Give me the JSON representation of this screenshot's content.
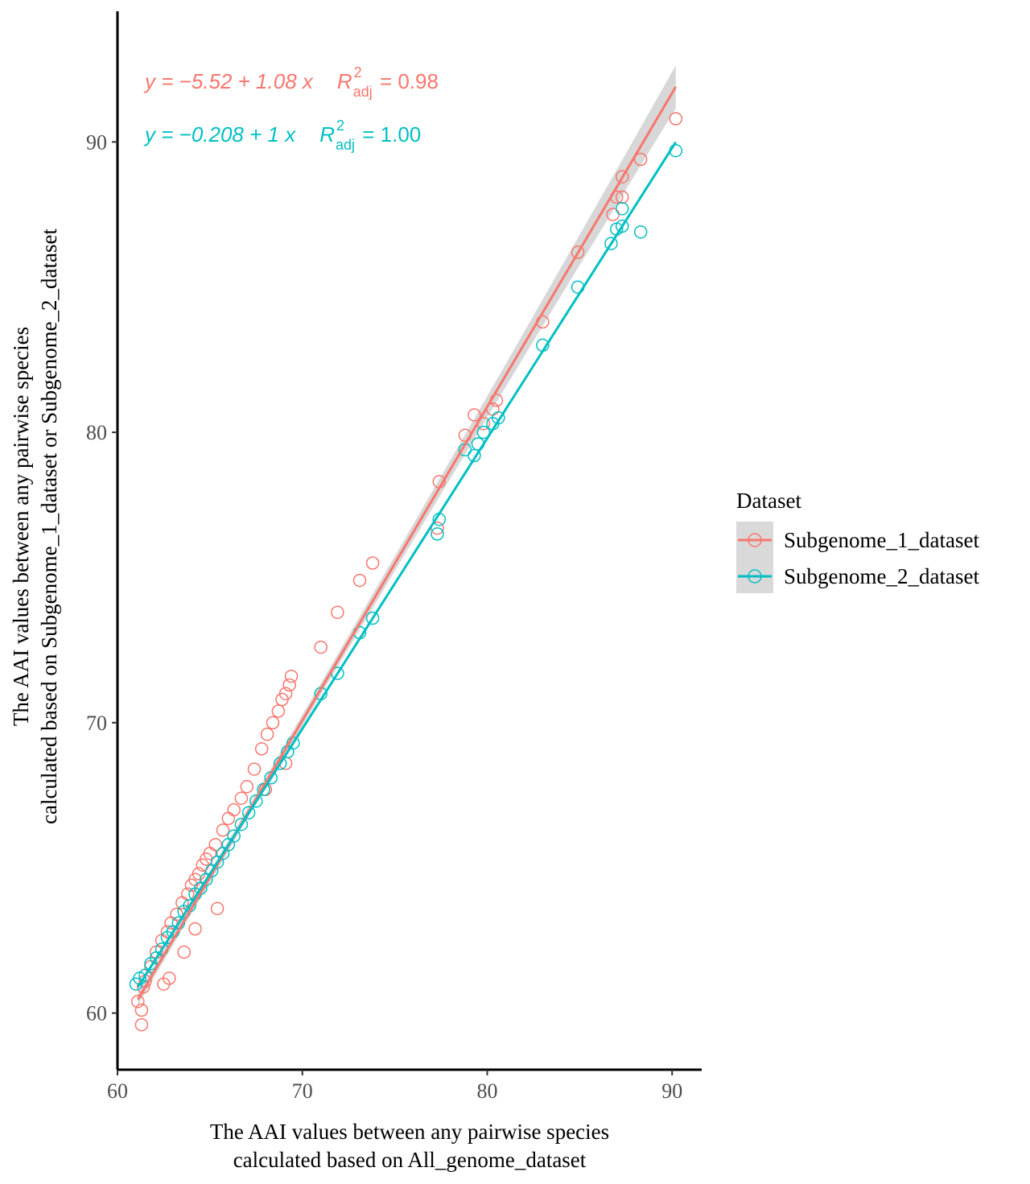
{
  "chart_data": {
    "type": "scatter",
    "title": "",
    "xlabel_lines": [
      "The AAI values between any pairwise species",
      "calculated based on All_genome_dataset"
    ],
    "ylabel_lines": [
      "The AAI values between any pairwise species",
      "calculated based on Subgenome_1_dataset or Subgenome_2_dataset"
    ],
    "xlim": [
      60,
      91.6
    ],
    "ylim": [
      58.05,
      94.5
    ],
    "x_ticks": [
      60,
      70,
      80,
      90
    ],
    "y_ticks": [
      60,
      70,
      80,
      90
    ],
    "x_tick_labels": [
      "60",
      "70",
      "80",
      "90"
    ],
    "y_tick_labels": [
      "60",
      "70",
      "80",
      "90"
    ],
    "grid": false,
    "legend": {
      "title": "Dataset",
      "position": "right"
    },
    "series": [
      {
        "name": "Subgenome_1_dataset",
        "color": "#F8766D",
        "equation": {
          "prefix": "y = −5.52 + 1.08 x",
          "r_symbol": "R",
          "r_sup": "2",
          "r_sub": "adj",
          "r_value": " = 0.98"
        },
        "fit": {
          "intercept": -5.52,
          "slope": 1.08,
          "x_range": [
            61.1,
            90.2
          ]
        },
        "x": [
          61.1,
          61.4,
          61.5,
          61.8,
          62.1,
          62.4,
          62.7,
          62.9,
          63.2,
          63.5,
          63.8,
          64.0,
          64.2,
          64.4,
          64.6,
          64.8,
          65.0,
          65.3,
          65.7,
          66.0,
          66.3,
          66.7,
          67.0,
          67.4,
          67.8,
          68.1,
          68.4,
          68.7,
          68.9,
          69.1,
          69.3,
          69.4,
          71.0,
          71.9,
          73.1,
          73.8,
          77.3,
          77.4,
          78.8,
          79.3,
          79.8,
          80.3,
          80.5,
          83.0,
          84.9,
          86.8,
          87.0,
          87.3,
          87.3,
          88.3,
          90.2,
          61.3,
          62.5,
          63.6,
          64.2,
          65.4,
          61.3,
          62.8,
          68.0,
          69.1
        ],
        "y": [
          60.4,
          60.9,
          61.1,
          61.6,
          62.1,
          62.5,
          62.8,
          63.1,
          63.4,
          63.8,
          64.1,
          64.4,
          64.6,
          64.8,
          65.1,
          65.3,
          65.5,
          65.8,
          66.3,
          66.7,
          67.0,
          67.4,
          67.8,
          68.4,
          69.1,
          69.6,
          70.0,
          70.4,
          70.8,
          71.0,
          71.3,
          71.6,
          72.6,
          73.8,
          74.9,
          75.5,
          76.7,
          78.3,
          79.9,
          80.6,
          80.3,
          80.8,
          81.1,
          83.8,
          86.2,
          87.5,
          88.1,
          88.1,
          88.8,
          89.4,
          90.8,
          59.6,
          61.0,
          62.1,
          62.9,
          63.6,
          60.1,
          61.2,
          67.7,
          68.6
        ]
      },
      {
        "name": "Subgenome_2_dataset",
        "color": "#00BFC4",
        "equation": {
          "prefix": "y = −0.208 + 1 x",
          "r_symbol": "R",
          "r_sup": "2",
          "r_sub": "adj",
          "r_value": " = 1.00"
        },
        "fit": {
          "intercept": -0.208,
          "slope": 1.0,
          "x_range": [
            61.1,
            90.2
          ]
        },
        "x": [
          61.0,
          61.2,
          61.5,
          61.8,
          62.1,
          62.4,
          62.7,
          63.0,
          63.3,
          63.6,
          63.9,
          64.2,
          64.5,
          64.8,
          65.1,
          65.4,
          65.7,
          66.0,
          66.3,
          66.7,
          67.1,
          67.5,
          67.9,
          68.3,
          68.8,
          69.2,
          69.5,
          71.0,
          71.9,
          73.1,
          73.8,
          77.3,
          77.4,
          78.8,
          79.3,
          79.5,
          79.8,
          80.3,
          80.6,
          83.0,
          84.9,
          86.7,
          87.0,
          87.3,
          87.3,
          88.3,
          90.2
        ],
        "y": [
          61.0,
          61.2,
          61.3,
          61.7,
          61.9,
          62.2,
          62.6,
          62.8,
          63.1,
          63.5,
          63.7,
          64.1,
          64.3,
          64.6,
          64.9,
          65.2,
          65.5,
          65.8,
          66.1,
          66.5,
          66.9,
          67.3,
          67.7,
          68.1,
          68.6,
          69.0,
          69.3,
          71.0,
          71.7,
          73.1,
          73.6,
          76.5,
          77.0,
          79.4,
          79.2,
          79.6,
          80.0,
          80.3,
          80.5,
          83.0,
          85.0,
          86.5,
          87.0,
          87.1,
          87.7,
          86.9,
          89.7
        ]
      }
    ]
  }
}
